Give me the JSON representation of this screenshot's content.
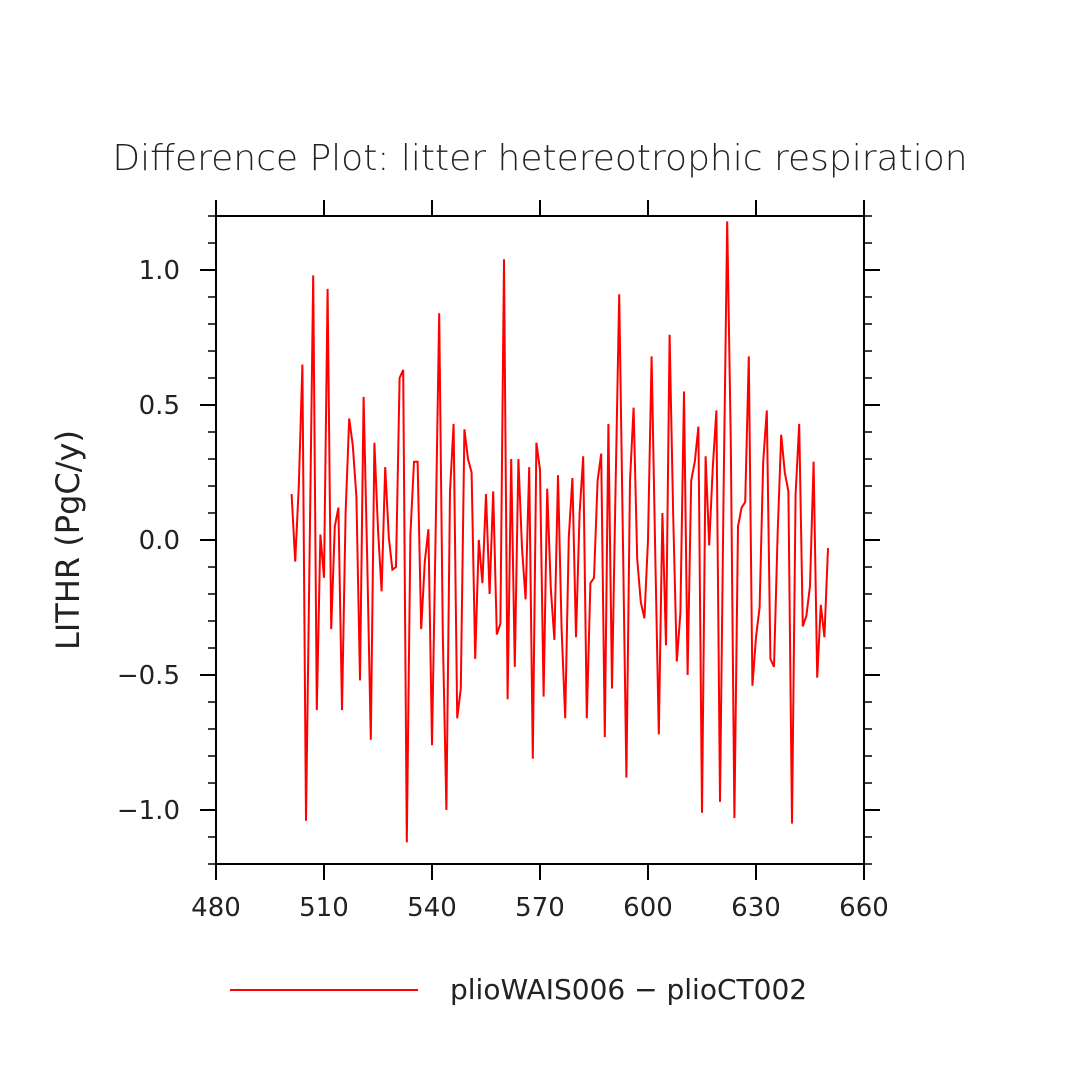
{
  "chart_data": {
    "type": "line",
    "title": "Difference Plot: litter hetereotrophic respiration",
    "xlabel": "",
    "ylabel": "LITHR  (PgC/y)",
    "xlim": [
      480,
      660
    ],
    "ylim": [
      -1.2,
      1.2
    ],
    "x_ticks": [
      480,
      510,
      540,
      570,
      600,
      630,
      660
    ],
    "x_tick_labels": [
      "480",
      "510",
      "540",
      "570",
      "600",
      "630",
      "660"
    ],
    "y_ticks": [
      -1.0,
      -0.5,
      0.0,
      0.5,
      1.0
    ],
    "y_tick_labels": [
      "−1.0",
      "−0.5",
      "0.0",
      "0.5",
      "1.0"
    ],
    "grid": false,
    "legend_position": "bottom",
    "line_color": "#ff0000",
    "series": [
      {
        "name": "plioWAIS006 − plioCT002",
        "x": [
          501,
          502,
          503,
          504,
          505,
          506,
          507,
          508,
          509,
          510,
          511,
          512,
          513,
          514,
          515,
          516,
          517,
          518,
          519,
          520,
          521,
          522,
          523,
          524,
          525,
          526,
          527,
          528,
          529,
          530,
          531,
          532,
          533,
          534,
          535,
          536,
          537,
          538,
          539,
          540,
          541,
          542,
          543,
          544,
          545,
          546,
          547,
          548,
          549,
          550,
          551,
          552,
          553,
          554,
          555,
          556,
          557,
          558,
          559,
          560,
          561,
          562,
          563,
          564,
          565,
          566,
          567,
          568,
          569,
          570,
          571,
          572,
          573,
          574,
          575,
          576,
          577,
          578,
          579,
          580,
          581,
          582,
          583,
          584,
          585,
          586,
          587,
          588,
          589,
          590,
          591,
          592,
          593,
          594,
          595,
          596,
          597,
          598,
          599,
          600,
          601,
          602,
          603,
          604,
          605,
          606,
          607,
          608,
          609,
          610,
          611,
          612,
          613,
          614,
          615,
          616,
          617,
          618,
          619,
          620,
          621,
          622,
          623,
          624,
          625,
          626,
          627,
          628,
          629,
          630,
          631,
          632,
          633,
          634,
          635,
          636,
          637,
          638,
          639,
          640,
          641,
          642,
          643,
          644,
          645,
          646,
          647,
          648,
          649,
          650
        ],
        "values": [
          0.17,
          -0.08,
          0.2,
          0.65,
          -1.04,
          -0.05,
          0.98,
          -0.63,
          0.02,
          -0.14,
          0.93,
          -0.33,
          0.05,
          0.12,
          -0.63,
          0.1,
          0.45,
          0.35,
          0.16,
          -0.52,
          0.53,
          -0.07,
          -0.74,
          0.36,
          0.04,
          -0.19,
          0.27,
          0.01,
          -0.11,
          -0.1,
          0.6,
          0.63,
          -1.12,
          0.02,
          0.29,
          0.29,
          -0.33,
          -0.08,
          0.04,
          -0.76,
          0.02,
          0.84,
          -0.35,
          -1.0,
          0.18,
          0.43,
          -0.66,
          -0.55,
          0.41,
          0.3,
          0.25,
          -0.44,
          0.0,
          -0.16,
          0.17,
          -0.2,
          0.18,
          -0.35,
          -0.31,
          1.04,
          -0.59,
          0.3,
          -0.47,
          0.3,
          -0.03,
          -0.22,
          0.27,
          -0.81,
          0.36,
          0.26,
          -0.58,
          0.19,
          -0.18,
          -0.37,
          0.24,
          -0.33,
          -0.66,
          0.01,
          0.23,
          -0.36,
          0.1,
          0.31,
          -0.66,
          -0.16,
          -0.14,
          0.22,
          0.32,
          -0.73,
          0.43,
          -0.55,
          0.2,
          0.91,
          0.03,
          -0.88,
          0.22,
          0.49,
          -0.07,
          -0.23,
          -0.29,
          0.0,
          0.68,
          -0.04,
          -0.72,
          0.1,
          -0.39,
          0.76,
          0.09,
          -0.45,
          -0.27,
          0.55,
          -0.5,
          0.22,
          0.29,
          0.42,
          -1.01,
          0.31,
          -0.02,
          0.27,
          0.48,
          -0.97,
          0.18,
          1.18,
          0.36,
          -1.03,
          0.05,
          0.12,
          0.14,
          0.68,
          -0.54,
          -0.36,
          -0.25,
          0.29,
          0.48,
          -0.44,
          -0.47,
          0.02,
          0.39,
          0.25,
          0.18,
          -1.05,
          0.17,
          0.43,
          -0.32,
          -0.28,
          -0.17,
          0.29,
          -0.51,
          -0.24,
          -0.36,
          -0.03
        ]
      }
    ]
  }
}
